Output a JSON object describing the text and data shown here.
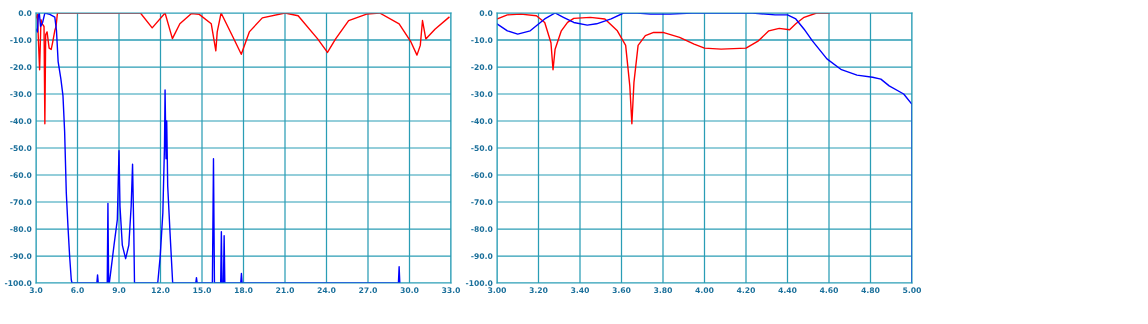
{
  "chart_data": [
    {
      "type": "line",
      "grid": true,
      "xlim": [
        3.0,
        33.0
      ],
      "ylim": [
        -100.0,
        0.0
      ],
      "xticks": [
        {
          "value": 3,
          "label": "3.0"
        },
        {
          "value": 6,
          "label": "6.0"
        },
        {
          "value": 9,
          "label": "9.0"
        },
        {
          "value": 12,
          "label": "12.0"
        },
        {
          "value": 15,
          "label": "15.0"
        },
        {
          "value": 18,
          "label": "18.0"
        },
        {
          "value": 21,
          "label": "21.0"
        },
        {
          "value": 24,
          "label": "24.0"
        },
        {
          "value": 27,
          "label": "27.0"
        },
        {
          "value": 30,
          "label": "30.0"
        },
        {
          "value": 33,
          "label": "33.0"
        }
      ],
      "yticks": [
        {
          "value": 0,
          "label": "0.0"
        },
        {
          "value": -10,
          "label": "-10.0"
        },
        {
          "value": -20,
          "label": "-20.0"
        },
        {
          "value": -30,
          "label": "-30.0"
        },
        {
          "value": -40,
          "label": "-40.0"
        },
        {
          "value": -50,
          "label": "-50.0"
        },
        {
          "value": -60,
          "label": "-60.0"
        },
        {
          "value": -70,
          "label": "-70.0"
        },
        {
          "value": -80,
          "label": "-80.0"
        },
        {
          "value": -90,
          "label": "-90.0"
        },
        {
          "value": -100,
          "label": "-100.0"
        }
      ],
      "series": [
        {
          "color": "#ff0000",
          "x": [
            3.0,
            3.1,
            3.26,
            3.36,
            3.45,
            3.58,
            3.64,
            3.7,
            3.8,
            3.95,
            4.1,
            4.2,
            4.36,
            4.45,
            4.55,
            10.55,
            11.4,
            12.33,
            12.86,
            13.4,
            14.24,
            14.8,
            15.67,
            16.0,
            16.1,
            16.38,
            17.2,
            17.84,
            18.42,
            19.36,
            21.0,
            21.95,
            23.36,
            24.07,
            24.66,
            25.6,
            26.9,
            27.84,
            29.25,
            30.07,
            30.54,
            30.78,
            30.94,
            31.18,
            31.84,
            32.85
          ],
          "values": [
            -1.8,
            -0.5,
            -21,
            -2.5,
            -4,
            -5,
            -41,
            -8,
            -7,
            -13,
            -13.5,
            -11,
            -6.5,
            -5,
            0,
            0,
            -5.5,
            0,
            -9.5,
            -4,
            -0.2,
            -0.5,
            -4,
            -14,
            -7,
            0,
            -8.5,
            -15.3,
            -7,
            -1.8,
            0,
            -1,
            -9.6,
            -14.6,
            -9.6,
            -2.8,
            -0.4,
            0,
            -4,
            -10.4,
            -15.6,
            -12,
            -2.8,
            -9.6,
            -6,
            -1.6
          ]
        },
        {
          "color": "#0000ff",
          "x": [
            3.0,
            3.1,
            3.17,
            3.24,
            3.33,
            3.48,
            3.64,
            4.0,
            4.36,
            4.48,
            4.6,
            4.8,
            4.95,
            5.07,
            5.19,
            5.31,
            5.43,
            5.55,
            5.6,
            7.4,
            7.45,
            7.5,
            8.15,
            8.2,
            8.25,
            8.3,
            8.4,
            8.64,
            8.88,
            9.0,
            9.07,
            9.24,
            9.48,
            9.71,
            9.88,
            9.98,
            10.07,
            10.12,
            11.8,
            11.98,
            12.17,
            12.29,
            12.33,
            12.4,
            12.45,
            12.52,
            12.69,
            12.88,
            14.55,
            14.6,
            14.65,
            15.75,
            15.8,
            15.83,
            15.9,
            16.35,
            16.4,
            16.45,
            16.55,
            16.6,
            16.65,
            17.8,
            17.85,
            17.9,
            29.2,
            29.25,
            29.3
          ],
          "values": [
            -6,
            -7,
            -1,
            0,
            -5,
            -3.5,
            0,
            -0.5,
            -1.5,
            -6.5,
            -18,
            -24.5,
            -30.7,
            -44,
            -66.6,
            -79,
            -90,
            -98.8,
            -100,
            -100,
            -97,
            -100,
            -100,
            -70.5,
            -100,
            -100,
            -96,
            -86,
            -76.5,
            -51,
            -71.5,
            -86,
            -91,
            -86,
            -71.5,
            -56,
            -81,
            -100,
            -100,
            -90,
            -74,
            -49,
            -28.5,
            -54,
            -40,
            -64,
            -81.5,
            -100,
            -100,
            -98,
            -100,
            -100,
            -72,
            -54,
            -100,
            -100,
            -81,
            -100,
            -100,
            -82.5,
            -100,
            -100,
            -96.5,
            -100,
            -100,
            -94,
            -100
          ]
        }
      ]
    },
    {
      "type": "line",
      "grid": true,
      "xlim": [
        3.0,
        5.0
      ],
      "ylim": [
        -100.0,
        0.0
      ],
      "xticks": [
        {
          "value": 3.0,
          "label": "3.00"
        },
        {
          "value": 3.2,
          "label": "3.20"
        },
        {
          "value": 3.4,
          "label": "3.40"
        },
        {
          "value": 3.6,
          "label": "3.60"
        },
        {
          "value": 3.8,
          "label": "3.80"
        },
        {
          "value": 4.0,
          "label": "4.00"
        },
        {
          "value": 4.2,
          "label": "4.20"
        },
        {
          "value": 4.4,
          "label": "4.40"
        },
        {
          "value": 4.6,
          "label": "4.60"
        },
        {
          "value": 4.8,
          "label": "4.80"
        },
        {
          "value": 5.0,
          "label": "5.00"
        }
      ],
      "yticks": [
        {
          "value": 0,
          "label": "0.0"
        },
        {
          "value": -10,
          "label": "-10.0"
        },
        {
          "value": -20,
          "label": "-20.0"
        },
        {
          "value": -30,
          "label": "-30.0"
        },
        {
          "value": -40,
          "label": "-40.0"
        },
        {
          "value": -50,
          "label": "-50.0"
        },
        {
          "value": -60,
          "label": "-60.0"
        },
        {
          "value": -70,
          "label": "-70.0"
        },
        {
          "value": -80,
          "label": "-80.0"
        },
        {
          "value": -90,
          "label": "-90.0"
        },
        {
          "value": -100,
          "label": "-100.0"
        }
      ],
      "series": [
        {
          "color": "#ff0000",
          "x": [
            3.0,
            3.05,
            3.115,
            3.19,
            3.23,
            3.26,
            3.27,
            3.28,
            3.31,
            3.34,
            3.37,
            3.45,
            3.52,
            3.58,
            3.62,
            3.64,
            3.65,
            3.66,
            3.68,
            3.715,
            3.755,
            3.8,
            3.88,
            3.95,
            4.0,
            4.08,
            4.2,
            4.26,
            4.31,
            4.36,
            4.41,
            4.44,
            4.48,
            4.54,
            4.6
          ],
          "values": [
            -2.2,
            -0.7,
            -0.4,
            -1,
            -3.5,
            -11,
            -21,
            -13.4,
            -6.6,
            -3.5,
            -2,
            -1.6,
            -2.2,
            -6.6,
            -12,
            -27,
            -41,
            -25.7,
            -12,
            -8.4,
            -7.2,
            -7.2,
            -9,
            -11.5,
            -13,
            -13.4,
            -13,
            -10.3,
            -6.6,
            -5.7,
            -6.2,
            -4,
            -1.6,
            0,
            0
          ]
        },
        {
          "color": "#0000ff",
          "x": [
            3.0,
            3.05,
            3.1,
            3.16,
            3.23,
            3.28,
            3.32,
            3.37,
            3.435,
            3.48,
            3.55,
            3.61,
            3.675,
            3.74,
            3.835,
            3.94,
            4.23,
            4.34,
            4.4,
            4.44,
            4.48,
            4.52,
            4.59,
            4.66,
            4.735,
            4.81,
            4.85,
            4.89,
            4.96,
            5.0,
            5.0
          ],
          "values": [
            -4,
            -6.6,
            -7.8,
            -6.6,
            -2.2,
            0,
            -1.6,
            -3.5,
            -4.5,
            -4,
            -2.2,
            0,
            0,
            -0.4,
            -0.4,
            0,
            0,
            -0.7,
            -0.7,
            -2.2,
            -6,
            -10.3,
            -17,
            -21,
            -23,
            -23.8,
            -24.5,
            -27,
            -30,
            -33.8,
            -100
          ]
        }
      ]
    }
  ]
}
